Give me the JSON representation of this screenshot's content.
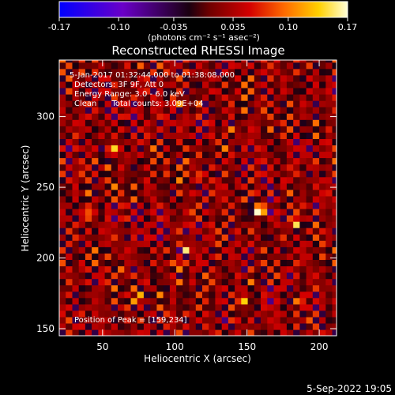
{
  "colorbar": {
    "ticks": [
      "-0.17",
      "-0.10",
      "-0.035",
      "0.035",
      "0.10",
      "0.17"
    ],
    "tick_values": [
      -0.17,
      -0.1,
      -0.035,
      0.035,
      0.1,
      0.17
    ],
    "range": [
      -0.17,
      0.17
    ],
    "unit_label": "(photons cm⁻² s⁻¹ asec⁻²)",
    "colors": [
      "#0000ff",
      "#6a00c8",
      "#1a0010",
      "#6e0000",
      "#d40000",
      "#ff6a00",
      "#ffd000",
      "#ffffd8"
    ]
  },
  "chart_data": {
    "type": "heatmap",
    "title": "Reconstructed RHESSI Image",
    "xlabel": "Heliocentric X (arcsec)",
    "ylabel": "Heliocentric Y (arcsec)",
    "xlim": [
      20,
      212
    ],
    "ylim": [
      145,
      340
    ],
    "xticks": [
      50,
      100,
      150,
      200
    ],
    "yticks": [
      150,
      200,
      250,
      300
    ],
    "peak": [
      159,
      234
    ],
    "bright_spots": [
      {
        "x": 159,
        "y": 234,
        "v": 0.17
      },
      {
        "x": 101,
        "y": 310,
        "v": 0.12
      },
      {
        "x": 57,
        "y": 277,
        "v": 0.12
      },
      {
        "x": 108,
        "y": 207,
        "v": 0.11
      },
      {
        "x": 103,
        "y": 197,
        "v": 0.1
      },
      {
        "x": 148,
        "y": 170,
        "v": 0.09
      },
      {
        "x": 183,
        "y": 225,
        "v": 0.08
      },
      {
        "x": 140,
        "y": 290,
        "v": 0.07
      },
      {
        "x": 118,
        "y": 258,
        "v": 0.08
      },
      {
        "x": 75,
        "y": 172,
        "v": 0.07
      },
      {
        "x": 186,
        "y": 170,
        "v": 0.07
      },
      {
        "x": 40,
        "y": 232,
        "v": 0.06
      },
      {
        "x": 63,
        "y": 190,
        "v": 0.07
      },
      {
        "x": 196,
        "y": 268,
        "v": 0.06
      }
    ],
    "annotations": [
      "5-Jan-2017 01:32:44.000 to 01:38:08.000",
      "Detectors: 3F 9F, Att 0",
      "Energy Range: 3.0 - 6.0 keV",
      "Clean      Total counts: 3.09E+04"
    ],
    "peak_label": "Position of Peak = [159,234]",
    "grid": false
  },
  "footer": {
    "date": "5-Sep-2022 19:05"
  }
}
